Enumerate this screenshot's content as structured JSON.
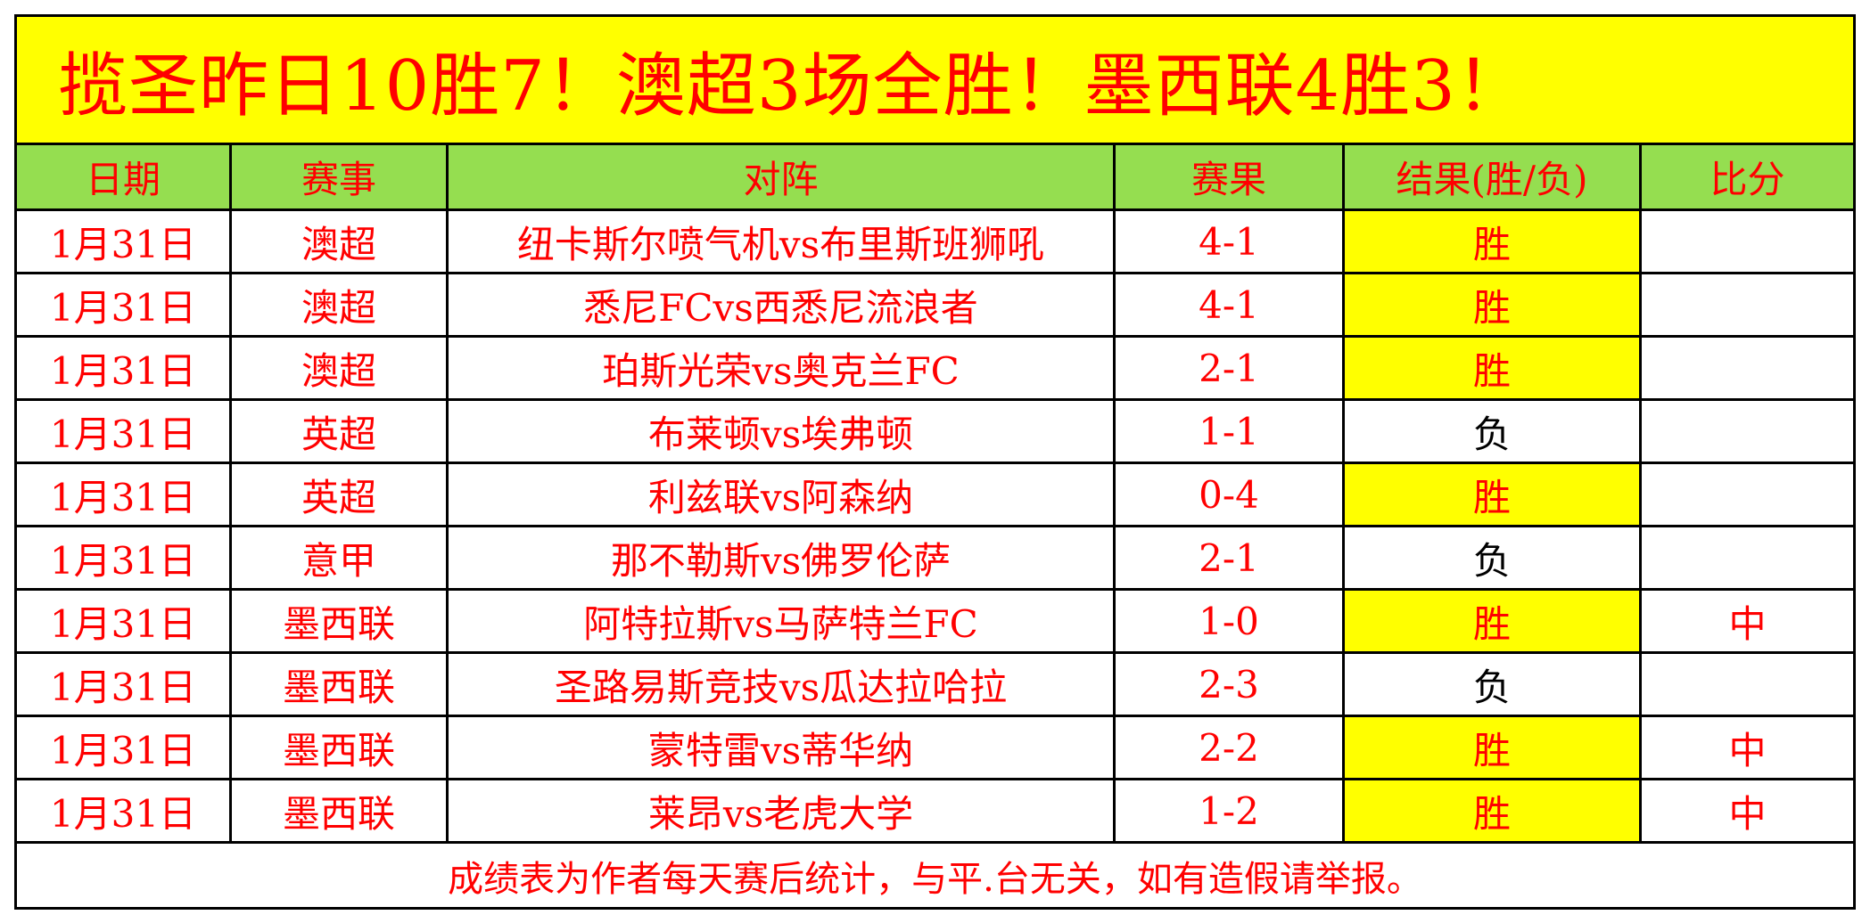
{
  "title": "揽圣昨日10胜7！澳超3场全胜！墨西联4胜3！",
  "headers": [
    "日期",
    "赛事",
    "对阵",
    "赛果",
    "结果(胜/负)",
    "比分"
  ],
  "rows": [
    {
      "date": "1月31日",
      "league": "澳超",
      "match": "纽卡斯尔喷气机vs布里斯班狮吼",
      "score": "4-1",
      "result": "胜",
      "bifen": ""
    },
    {
      "date": "1月31日",
      "league": "澳超",
      "match": "悉尼FCvs西悉尼流浪者",
      "score": "4-1",
      "result": "胜",
      "bifen": ""
    },
    {
      "date": "1月31日",
      "league": "澳超",
      "match": "珀斯光荣vs奥克兰FC",
      "score": "2-1",
      "result": "胜",
      "bifen": ""
    },
    {
      "date": "1月31日",
      "league": "英超",
      "match": "布莱顿vs埃弗顿",
      "score": "1-1",
      "result": "负",
      "bifen": ""
    },
    {
      "date": "1月31日",
      "league": "英超",
      "match": "利兹联vs阿森纳",
      "score": "0-4",
      "result": "胜",
      "bifen": ""
    },
    {
      "date": "1月31日",
      "league": "意甲",
      "match": "那不勒斯vs佛罗伦萨",
      "score": "2-1",
      "result": "负",
      "bifen": ""
    },
    {
      "date": "1月31日",
      "league": "墨西联",
      "match": "阿特拉斯vs马萨特兰FC",
      "score": "1-0",
      "result": "胜",
      "bifen": "中"
    },
    {
      "date": "1月31日",
      "league": "墨西联",
      "match": "圣路易斯竞技vs瓜达拉哈拉",
      "score": "2-3",
      "result": "负",
      "bifen": ""
    },
    {
      "date": "1月31日",
      "league": "墨西联",
      "match": "蒙特雷vs蒂华纳",
      "score": "2-2",
      "result": "胜",
      "bifen": "中"
    },
    {
      "date": "1月31日",
      "league": "墨西联",
      "match": "莱昂vs老虎大学",
      "score": "1-2",
      "result": "胜",
      "bifen": "中"
    }
  ],
  "footer": "成绩表为作者每天赛后统计，与平.台无关，如有造假请举报。",
  "colors": {
    "title_bg": "#ffff00",
    "header_bg": "#95de50",
    "win_bg": "#ffff00",
    "text": "#ff0000",
    "lose_text": "#000000"
  }
}
